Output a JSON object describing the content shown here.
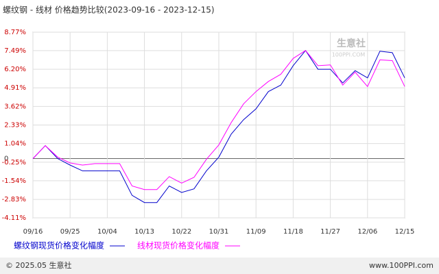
{
  "chart_data": {
    "type": "line",
    "title": "螺纹钢 - 线材 价格趋势比较(2023-09-16 - 2023-12-15)",
    "categories": [
      "09/16",
      null,
      null,
      "09/25",
      null,
      null,
      "10/04",
      null,
      null,
      "10/13",
      null,
      null,
      "10/22",
      null,
      null,
      "10/31",
      null,
      null,
      "11/09",
      null,
      null,
      "11/18",
      null,
      null,
      "11/27",
      null,
      null,
      "12/06",
      null,
      null,
      "12/15"
    ],
    "series": [
      {
        "name": "螺纹钢现货价格变化幅度",
        "color": "#0000cc",
        "values": [
          0,
          0.9,
          0,
          -0.45,
          -0.85,
          -0.85,
          -0.85,
          -0.85,
          -2.55,
          -3.05,
          -3.05,
          -1.9,
          -2.35,
          -2.1,
          -0.85,
          0.1,
          1.7,
          2.7,
          3.45,
          4.65,
          5.1,
          6.45,
          7.5,
          6.2,
          6.2,
          5.25,
          6.1,
          5.6,
          7.45,
          7.35,
          5.6
        ]
      },
      {
        "name": "线材现货价格变化幅度",
        "color": "#ff00ff",
        "values": [
          0,
          0.9,
          0.1,
          -0.3,
          -0.45,
          -0.35,
          -0.35,
          -0.35,
          -1.9,
          -2.15,
          -2.15,
          -1.25,
          -1.7,
          -1.3,
          -0.05,
          0.95,
          2.5,
          3.8,
          4.65,
          5.35,
          5.85,
          6.95,
          7.5,
          6.45,
          6.5,
          5.1,
          6.0,
          5.0,
          6.85,
          6.8,
          5.0
        ]
      }
    ],
    "ylim": [
      -4.11,
      8.77
    ],
    "yticks": [
      {
        "value": 8.77,
        "label": "8.77%"
      },
      {
        "value": 7.49,
        "label": "7.49%"
      },
      {
        "value": 6.2,
        "label": "6.20%"
      },
      {
        "value": 4.91,
        "label": "4.91%"
      },
      {
        "value": 3.62,
        "label": "3.62%"
      },
      {
        "value": 2.33,
        "label": "2.33%"
      },
      {
        "value": 1.04,
        "label": "1.04%"
      },
      0,
      {
        "value": -0.25,
        "label": "-0.25%"
      },
      {
        "value": -1.54,
        "label": "-1.54%"
      },
      {
        "value": -2.83,
        "label": "-2.83%"
      },
      {
        "value": -4.11,
        "label": "-4.11%"
      }
    ],
    "grid": true,
    "watermark": [
      "生意社",
      "100PPI.COM"
    ],
    "footer": {
      "left": "© 2025.05 生意社",
      "right": "www.100PPI.com"
    }
  }
}
